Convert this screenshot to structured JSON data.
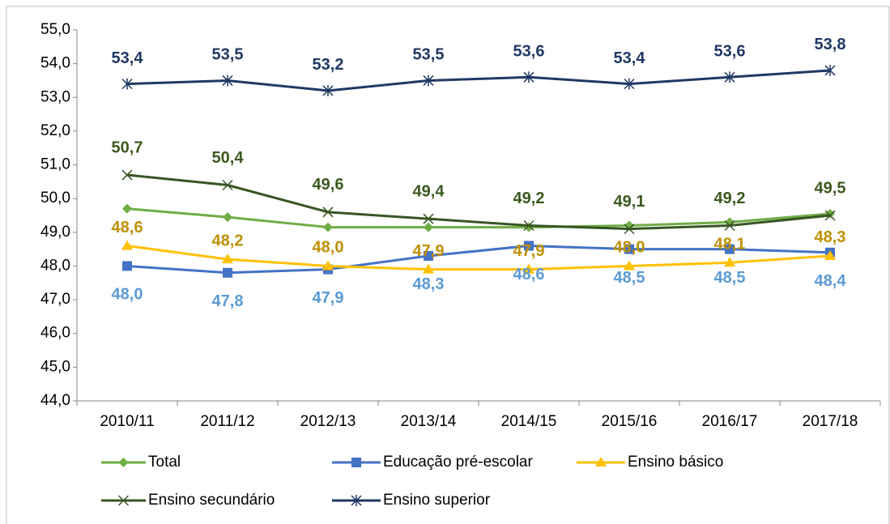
{
  "chart_data": {
    "type": "line",
    "categories": [
      "2010/11",
      "2011/12",
      "2012/13",
      "2013/14",
      "2014/15",
      "2015/16",
      "2016/17",
      "2017/18"
    ],
    "ylim": [
      44,
      55
    ],
    "yticks": [
      {
        "value": 44,
        "label": "44,0"
      },
      {
        "value": 45,
        "label": "45,0"
      },
      {
        "value": 46,
        "label": "46,0"
      },
      {
        "value": 47,
        "label": "47,0"
      },
      {
        "value": 48,
        "label": "48,0"
      },
      {
        "value": 49,
        "label": "49,0"
      },
      {
        "value": 50,
        "label": "50,0"
      },
      {
        "value": 51,
        "label": "51,0"
      },
      {
        "value": 52,
        "label": "52,0"
      },
      {
        "value": 53,
        "label": "53,0"
      },
      {
        "value": 54,
        "label": "54,0"
      },
      {
        "value": 55,
        "label": "55,0"
      }
    ],
    "series": [
      {
        "name": "Total",
        "color": "#70ad47",
        "marker": "diamond",
        "values": [
          49.7,
          49.45,
          49.15,
          49.15,
          49.15,
          49.2,
          49.3,
          49.55
        ]
      },
      {
        "name": "Educação pré-escolar",
        "color": "#4472c4",
        "marker": "square",
        "label_color": "#5b9bd5",
        "values": [
          48.0,
          47.8,
          47.9,
          48.3,
          48.6,
          48.5,
          48.5,
          48.4
        ],
        "value_labels": [
          "48,0",
          "47,8",
          "47,9",
          "48,3",
          "48,6",
          "48,5",
          "48,5",
          "48,4"
        ]
      },
      {
        "name": "Ensino básico",
        "color": "#ffc000",
        "marker": "triangle",
        "label_color": "#bf9000",
        "values": [
          48.6,
          48.2,
          48.0,
          47.9,
          47.9,
          48.0,
          48.1,
          48.3
        ],
        "value_labels": [
          "48,6",
          "48,2",
          "48,0",
          "47,9",
          "47,9",
          "48,0",
          "48,1",
          "48,3"
        ]
      },
      {
        "name": "Ensino secundário",
        "color": "#375623",
        "marker": "x",
        "label_color": "#3b5a1e",
        "values": [
          50.7,
          50.4,
          49.6,
          49.4,
          49.2,
          49.1,
          49.2,
          49.5
        ],
        "value_labels": [
          "50,7",
          "50,4",
          "49,6",
          "49,4",
          "49,2",
          "49,1",
          "49,2",
          "49,5"
        ]
      },
      {
        "name": "Ensino superior",
        "color": "#203864",
        "marker": "asterisk",
        "label_color": "#203864",
        "values": [
          53.4,
          53.5,
          53.2,
          53.5,
          53.6,
          53.4,
          53.6,
          53.8
        ],
        "value_labels": [
          "53,4",
          "53,5",
          "53,2",
          "53,5",
          "53,6",
          "53,4",
          "53,6",
          "53,8"
        ]
      }
    ]
  }
}
